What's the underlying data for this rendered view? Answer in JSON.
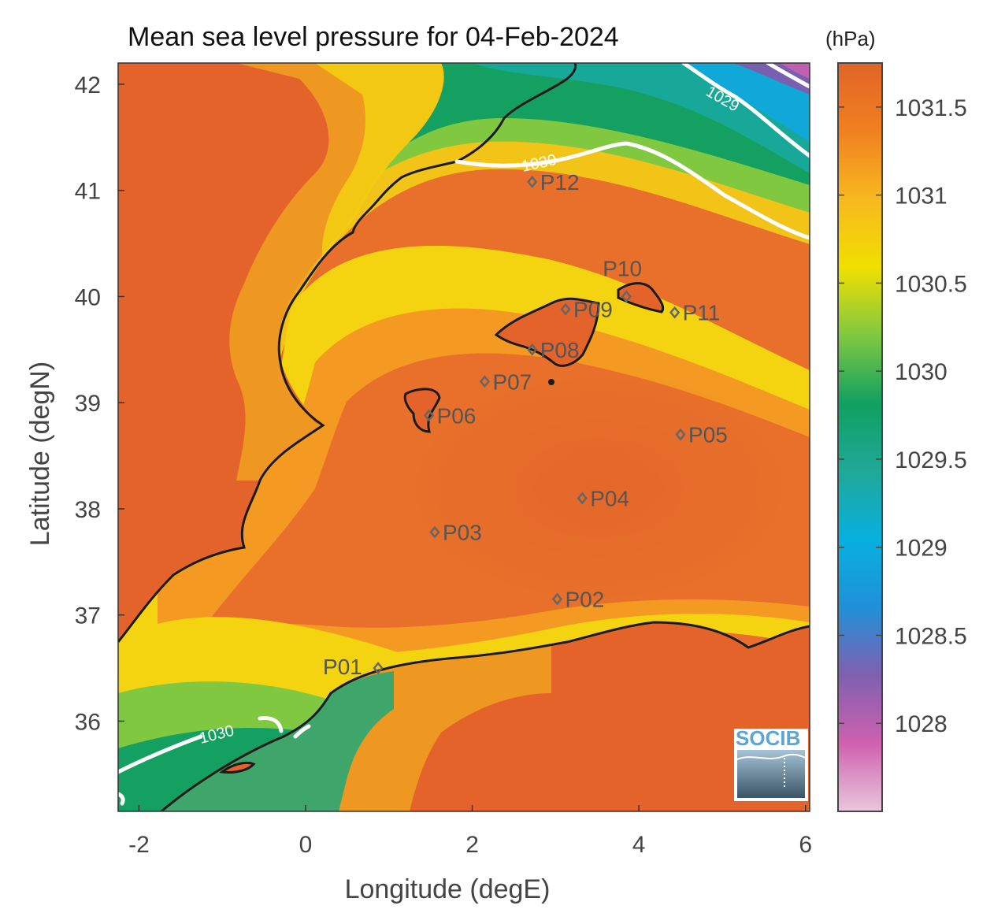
{
  "title": "Mean sea level pressure for 04-Feb-2024",
  "colorbar": {
    "unit": "(hPa)",
    "ticks": [
      "1031.5",
      "1031",
      "1030.5",
      "1030",
      "1029.5",
      "1029",
      "1028.5",
      "1028"
    ],
    "range": [
      1027.5,
      1031.75
    ],
    "colors": [
      "#e8c8dc",
      "#d060b0",
      "#8060b0",
      "#2090d8",
      "#08b0e0",
      "#20a898",
      "#10a060",
      "#80c840",
      "#f0e000",
      "#f8b820",
      "#f08020",
      "#e06428"
    ]
  },
  "axes": {
    "xlabel": "Longitude (degE)",
    "ylabel": "Latitude (degN)",
    "xticks": [
      "-2",
      "0",
      "2",
      "4",
      "6"
    ],
    "yticks": [
      "42",
      "41",
      "40",
      "39",
      "38",
      "37",
      "36"
    ],
    "xlim": [
      -2.25,
      6.05
    ],
    "ylim": [
      35.15,
      42.2
    ]
  },
  "contours": [
    {
      "label": "1029"
    },
    {
      "label": "1030"
    },
    {
      "label": "1030"
    }
  ],
  "stations": [
    {
      "id": "P01",
      "lon": 0.87,
      "lat": 36.5
    },
    {
      "id": "P02",
      "lon": 3.02,
      "lat": 37.15
    },
    {
      "id": "P03",
      "lon": 1.55,
      "lat": 37.78
    },
    {
      "id": "P04",
      "lon": 3.32,
      "lat": 38.1
    },
    {
      "id": "P05",
      "lon": 4.5,
      "lat": 38.7
    },
    {
      "id": "P06",
      "lon": 1.48,
      "lat": 38.88
    },
    {
      "id": "P07",
      "lon": 2.15,
      "lat": 39.2
    },
    {
      "id": "P08",
      "lon": 2.72,
      "lat": 39.5
    },
    {
      "id": "P09",
      "lon": 3.12,
      "lat": 39.88
    },
    {
      "id": "P10",
      "lon": 3.85,
      "lat": 40.0
    },
    {
      "id": "P11",
      "lon": 4.43,
      "lat": 39.85
    },
    {
      "id": "P12",
      "lon": 2.72,
      "lat": 41.08
    }
  ],
  "logo": {
    "text": "SOCIB"
  }
}
